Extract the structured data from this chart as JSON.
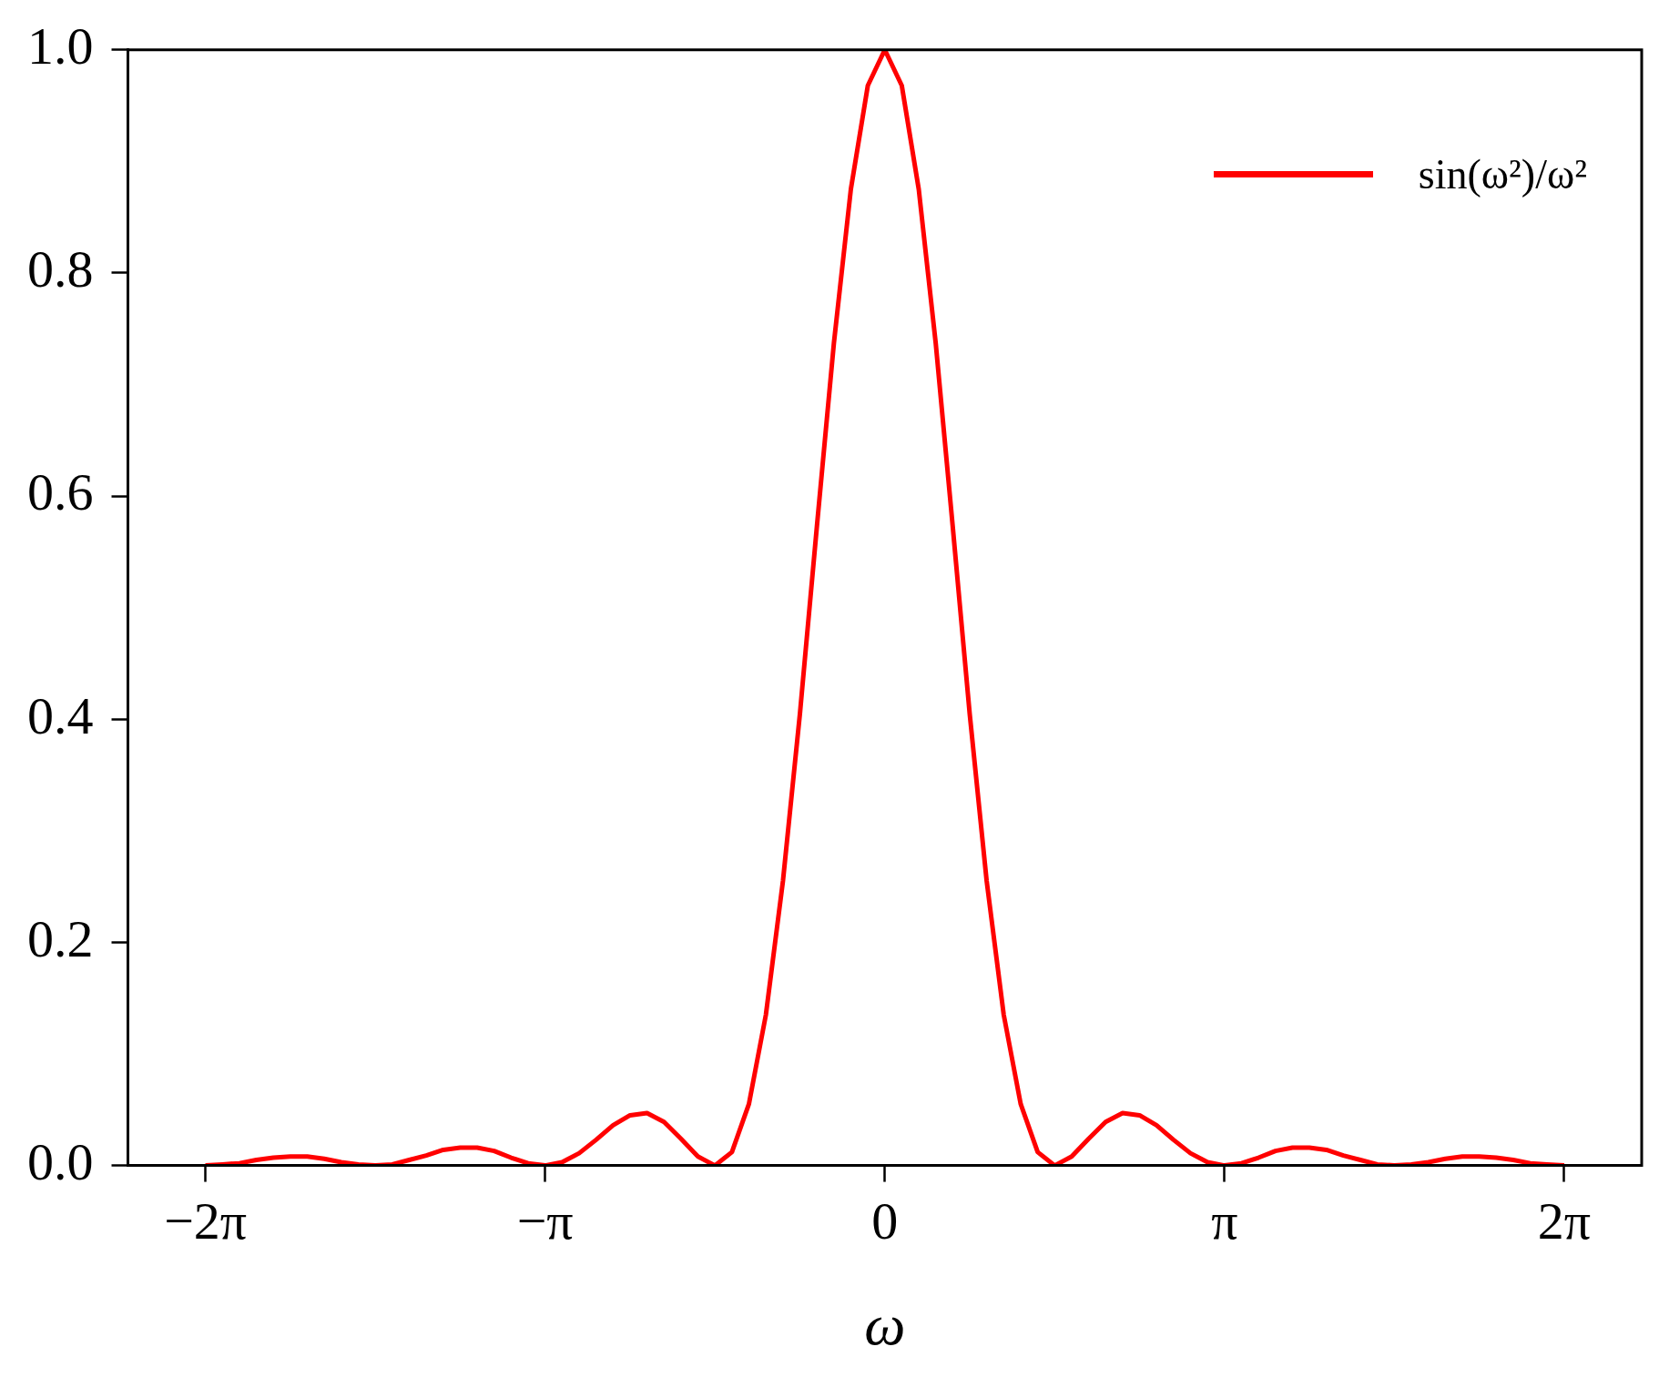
{
  "chart_data": {
    "type": "line",
    "xlabel": "ω",
    "x": [
      -6.283,
      -6.126,
      -5.969,
      -5.812,
      -5.655,
      -5.498,
      -5.341,
      -5.184,
      -5.027,
      -4.869,
      -4.712,
      -4.555,
      -4.398,
      -4.241,
      -4.084,
      -3.927,
      -3.77,
      -3.613,
      -3.456,
      -3.299,
      -3.142,
      -2.985,
      -2.827,
      -2.67,
      -2.513,
      -2.356,
      -2.199,
      -2.042,
      -1.885,
      -1.728,
      -1.571,
      -1.414,
      -1.257,
      -1.1,
      -0.942,
      -0.785,
      -0.628,
      -0.471,
      -0.314,
      -0.157,
      0,
      0.157,
      0.314,
      0.471,
      0.628,
      0.785,
      0.942,
      1.1,
      1.257,
      1.414,
      1.571,
      1.728,
      1.885,
      2.042,
      2.199,
      2.356,
      2.513,
      2.67,
      2.827,
      2.985,
      3.142,
      3.299,
      3.456,
      3.613,
      3.77,
      3.927,
      4.084,
      4.241,
      4.398,
      4.555,
      4.712,
      4.869,
      5.027,
      5.184,
      5.341,
      5.498,
      5.655,
      5.812,
      5.969,
      6.126,
      6.283
    ],
    "series": [
      {
        "name": "sin(ω²)/ω²",
        "color": "#ff0000",
        "values": [
          0,
          0.001,
          0.002,
          0.005,
          0.007,
          0.008,
          0.008,
          0.006,
          0.003,
          0.001,
          0,
          0.001,
          0.005,
          0.009,
          0.014,
          0.016,
          0.016,
          0.013,
          0.007,
          0.002,
          0,
          0.003,
          0.011,
          0.023,
          0.036,
          0.045,
          0.047,
          0.039,
          0.024,
          0.008,
          0,
          0.012,
          0.055,
          0.135,
          0.255,
          0.405,
          0.573,
          0.737,
          0.875,
          0.968,
          1,
          0.968,
          0.875,
          0.737,
          0.573,
          0.405,
          0.255,
          0.135,
          0.055,
          0.012,
          0,
          0.008,
          0.024,
          0.039,
          0.047,
          0.045,
          0.036,
          0.023,
          0.011,
          0.003,
          0,
          0.002,
          0.007,
          0.013,
          0.016,
          0.016,
          0.014,
          0.009,
          0.005,
          0.001,
          0,
          0.001,
          0.003,
          0.006,
          0.008,
          0.008,
          0.007,
          0.005,
          0.002,
          0.001,
          0
        ]
      }
    ],
    "xlim": [
      -7,
      7
    ],
    "xticks": [
      {
        "value": -6.283,
        "label": "−2π"
      },
      {
        "value": -3.142,
        "label": "−π"
      },
      {
        "value": 0,
        "label": "0"
      },
      {
        "value": 3.142,
        "label": "π"
      },
      {
        "value": 6.283,
        "label": "2π"
      }
    ],
    "ylim": [
      0,
      1
    ],
    "yticks": [
      {
        "value": 0,
        "label": "0.0"
      },
      {
        "value": 0.2,
        "label": "0.2"
      },
      {
        "value": 0.4,
        "label": "0.4"
      },
      {
        "value": 0.6,
        "label": "0.6"
      },
      {
        "value": 0.8,
        "label": "0.8"
      },
      {
        "value": 1,
        "label": "1.0"
      }
    ],
    "grid": false,
    "legend": "top right",
    "marker": "none",
    "line_style": "solid"
  }
}
